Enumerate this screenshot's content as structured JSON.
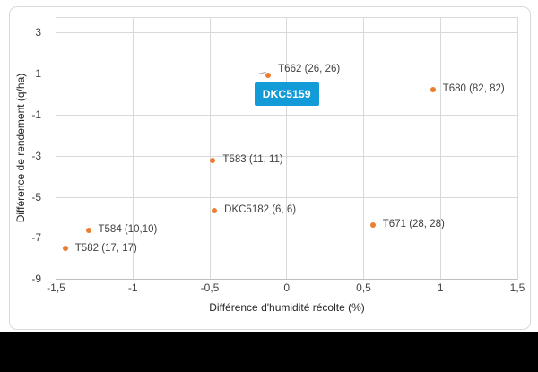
{
  "window": {
    "background": "#FFFFFF",
    "bottom_bar_color": "#000000",
    "chart_border_color": "#D9D9D9"
  },
  "chart_data": {
    "type": "scatter",
    "title": "",
    "xlabel": "Différence d'humidité récolte (%)",
    "ylabel": "Différence de rendement (q/ha)",
    "xlim": [
      -1.5,
      1.5
    ],
    "ylim": [
      -9,
      3
    ],
    "grid": true,
    "legend": "none",
    "marker_color": "#ED7D31",
    "x_ticks": [
      {
        "value": -1.5,
        "label": "-1,5"
      },
      {
        "value": -1,
        "label": "-1"
      },
      {
        "value": -0.5,
        "label": "-0,5"
      },
      {
        "value": 0,
        "label": "0"
      },
      {
        "value": 0.5,
        "label": "0,5"
      },
      {
        "value": 1,
        "label": "1"
      },
      {
        "value": 1.5,
        "label": "1,5"
      }
    ],
    "y_ticks": [
      {
        "value": 3,
        "label": "3"
      },
      {
        "value": 1,
        "label": "1"
      },
      {
        "value": -1,
        "label": "-1"
      },
      {
        "value": -3,
        "label": "-3"
      },
      {
        "value": -5,
        "label": "-5"
      },
      {
        "value": -7,
        "label": "-7"
      },
      {
        "value": -9,
        "label": "-9"
      }
    ],
    "points": [
      {
        "id": "T662",
        "label": "T662 (26, 26)",
        "x": -0.12,
        "y": 0.95,
        "label_dy": -6
      },
      {
        "id": "DKC5159",
        "label": "DKC5159",
        "x": 0,
        "y": 0,
        "callout": true
      },
      {
        "id": "T680",
        "label": "T680 (82, 82)",
        "x": 0.95,
        "y": 0.25
      },
      {
        "id": "T583",
        "label": "T583 (11, 11)",
        "x": -0.48,
        "y": -3.2
      },
      {
        "id": "DKC5182",
        "label": "DKC5182 (6, 6)",
        "x": -0.47,
        "y": -5.65
      },
      {
        "id": "T671",
        "label": "T671 (28, 28)",
        "x": 0.56,
        "y": -6.35
      },
      {
        "id": "T584",
        "label": "T584 (10,10)",
        "x": -1.29,
        "y": -6.6
      },
      {
        "id": "T582",
        "label": "T582 (17, 17)",
        "x": -1.44,
        "y": -7.5
      }
    ],
    "callout": {
      "fill": "#129BD7",
      "text_color": "#FFFFFF"
    },
    "colors": {
      "gridline": "#D9D9D9",
      "axis_line": "#BFBFBF",
      "tick_text": "#404040",
      "title_text": "#262626",
      "point_label_text": "#404040",
      "leader_line": "#A6A6A6"
    }
  }
}
